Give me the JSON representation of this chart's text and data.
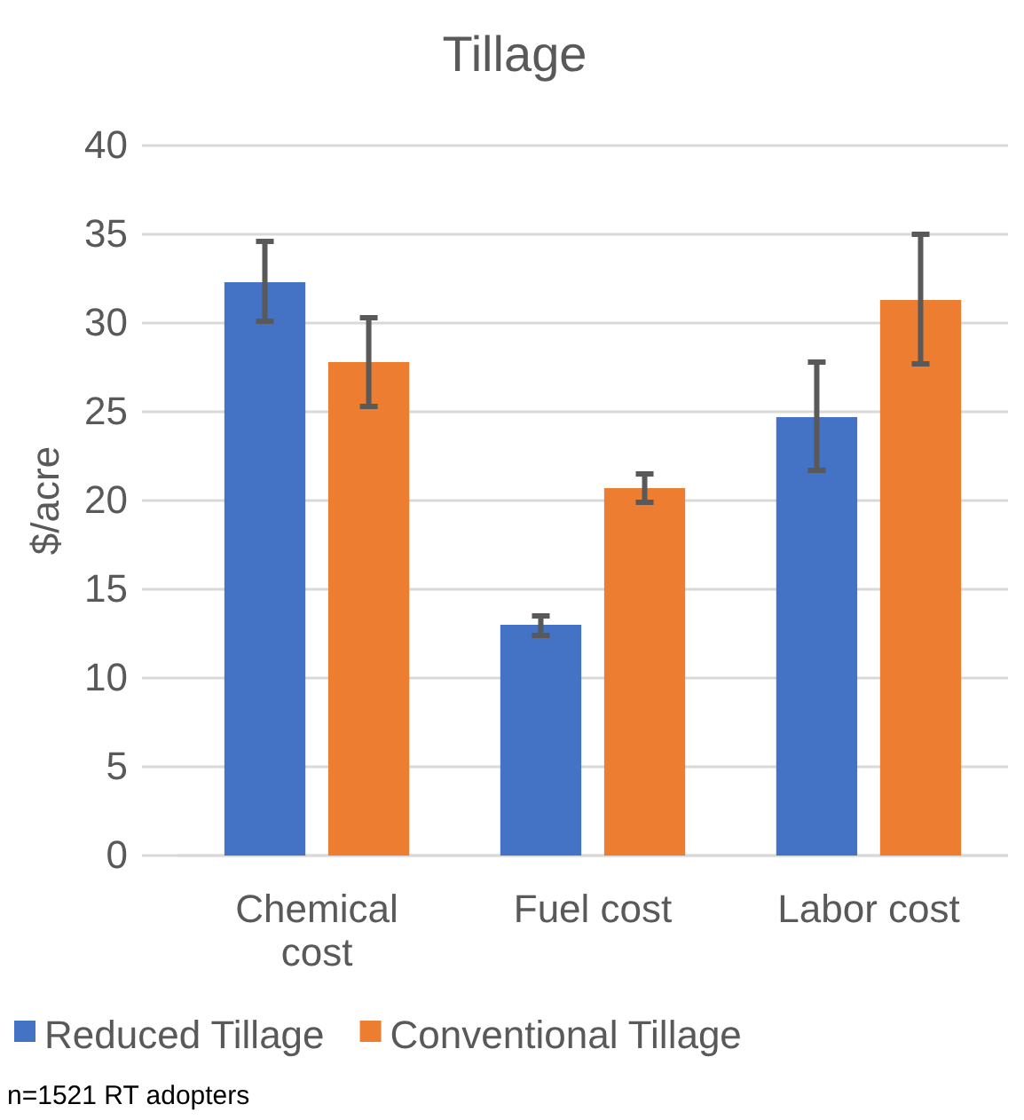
{
  "chart_data": {
    "type": "bar",
    "title": "Tillage",
    "ylabel": "$/acre",
    "categories": [
      "Chemical cost",
      "Fuel cost",
      "Labor cost"
    ],
    "series": [
      {
        "name": "Reduced Tillage",
        "color": "#4472c4",
        "values": [
          32.3,
          13.0,
          24.7
        ],
        "errors": [
          [
            30.1,
            34.6
          ],
          [
            12.4,
            13.5
          ],
          [
            21.7,
            27.8
          ]
        ]
      },
      {
        "name": "Conventional Tillage",
        "color": "#ed7d31",
        "values": [
          27.8,
          20.7,
          31.3
        ],
        "errors": [
          [
            25.3,
            30.3
          ],
          [
            19.9,
            21.5
          ],
          [
            27.7,
            35.0
          ]
        ]
      }
    ],
    "ylim": [
      0,
      40
    ],
    "yticks": [
      0,
      5,
      10,
      15,
      20,
      25,
      30,
      35,
      40
    ],
    "grid": "y",
    "legend": "bottom",
    "annotations": [
      "n=1521 RT adopters"
    ]
  }
}
